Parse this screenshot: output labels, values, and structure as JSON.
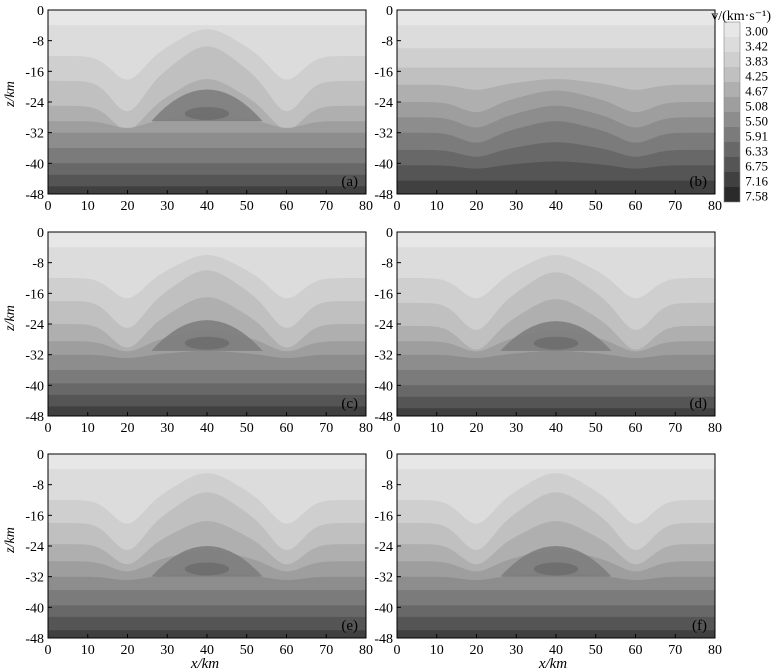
{
  "chart_data": {
    "type": "heatmap",
    "shared": {
      "xlabel": "x/km",
      "ylabel": "z/km",
      "x_ticks": [
        0,
        10,
        20,
        30,
        40,
        50,
        60,
        70,
        80
      ],
      "y_ticks": [
        0,
        -8,
        -16,
        -24,
        -32,
        -40,
        -48
      ],
      "xlim": [
        0,
        80
      ],
      "ylim": [
        -48,
        0
      ]
    },
    "colorbar": {
      "label": "v/(km·s⁻¹)",
      "levels": [
        3.0,
        3.42,
        3.83,
        4.25,
        4.67,
        5.08,
        5.5,
        5.91,
        6.33,
        6.75,
        7.16,
        7.58
      ],
      "level_labels": [
        "3.00",
        "3.42",
        "3.83",
        "4.25",
        "4.67",
        "5.08",
        "5.50",
        "5.91",
        "6.33",
        "6.75",
        "7.16",
        "7.58"
      ],
      "colors": [
        "#e7e7e7",
        "#dcdcdc",
        "#cfcfcf",
        "#c0c0c0",
        "#afafaf",
        "#9e9e9e",
        "#8d8d8d",
        "#7b7b7b",
        "#686868",
        "#555555",
        "#404040",
        "#2a2a2a"
      ]
    },
    "panels": [
      {
        "label": "(a)",
        "model": "true",
        "interfaces": [
          4,
          12,
          18.5,
          25,
          29,
          32,
          36,
          40,
          43,
          46
        ],
        "amplitudes": [
          0,
          7,
          9,
          7,
          2,
          0,
          0,
          0,
          0,
          0
        ],
        "dome_peak": -18.5,
        "dome_core": -27
      },
      {
        "label": "(b)",
        "model": "initial",
        "interfaces": [
          4,
          10,
          15,
          19.5,
          24,
          28,
          32,
          36.5,
          40.5,
          44.5
        ],
        "amplitudes": [
          0,
          0,
          0,
          1.5,
          3,
          3,
          3,
          2,
          1,
          0
        ],
        "dome_peak": null,
        "dome_core": null
      },
      {
        "label": "(c)",
        "model": "inverted",
        "interfaces": [
          4,
          12,
          18,
          24,
          28.5,
          32,
          36,
          39.5,
          42.5,
          45.5
        ],
        "amplitudes": [
          0,
          6,
          8,
          7,
          3,
          1,
          0,
          0,
          0,
          0
        ],
        "dome_peak": -21,
        "dome_core": -29
      },
      {
        "label": "(d)",
        "model": "inverted",
        "interfaces": [
          4,
          12,
          18.5,
          24.5,
          28.5,
          32,
          36,
          40,
          43,
          46
        ],
        "amplitudes": [
          0,
          6,
          8,
          7,
          3,
          1,
          0,
          0,
          0,
          0
        ],
        "dome_peak": -21.5,
        "dome_core": -29
      },
      {
        "label": "(e)",
        "model": "inverted",
        "interfaces": [
          4,
          12,
          18,
          23.5,
          28,
          32,
          35.5,
          39.5,
          42.5,
          46
        ],
        "amplitudes": [
          0,
          7,
          8,
          6,
          3,
          1,
          0,
          0,
          0,
          0
        ],
        "dome_peak": -22,
        "dome_core": -30
      },
      {
        "label": "(f)",
        "model": "inverted",
        "interfaces": [
          4,
          12,
          18,
          23.5,
          28,
          32,
          35.5,
          39.5,
          42.5,
          46
        ],
        "amplitudes": [
          0,
          7,
          8,
          6,
          3,
          1,
          0,
          0,
          0,
          0
        ],
        "dome_peak": -22,
        "dome_core": -30
      }
    ]
  }
}
